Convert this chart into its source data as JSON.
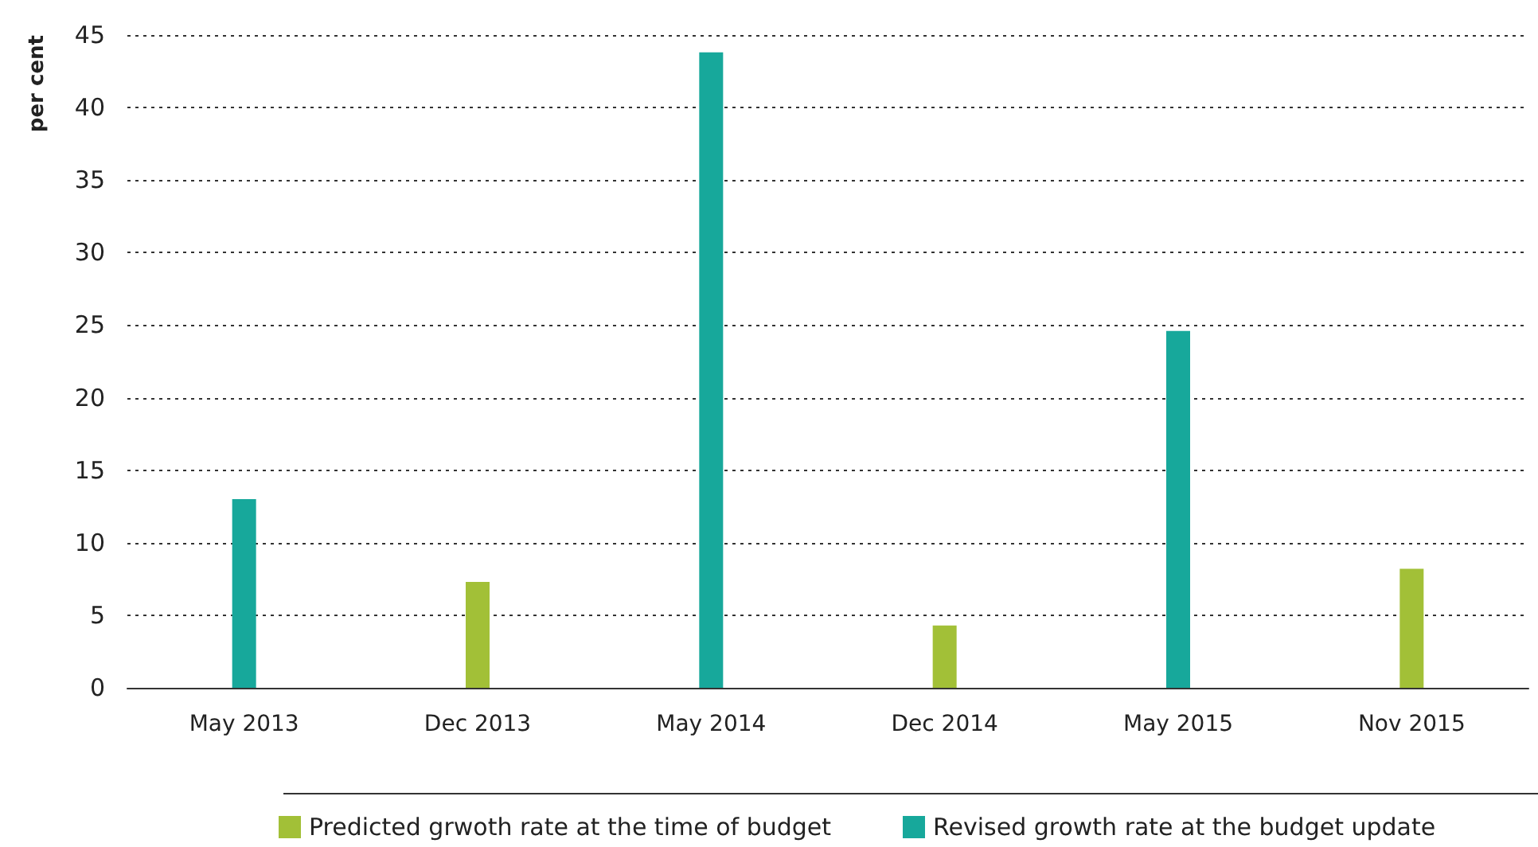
{
  "chart_data": {
    "type": "bar",
    "ylabel": "per cent",
    "categories": [
      "May 2013",
      "Dec 2013",
      "May 2014",
      "Dec 2014",
      "May 2015",
      "Nov 2015"
    ],
    "series": [
      {
        "name": "Predicted grwoth rate at the time of budget",
        "color": "#a2c037",
        "values": [
          null,
          7.3,
          null,
          4.3,
          null,
          8.2
        ]
      },
      {
        "name": "Revised growth rate at the budget update",
        "color": "#17a89b",
        "values": [
          13,
          null,
          43.8,
          null,
          24.6,
          null
        ]
      }
    ],
    "ylim": [
      0,
      45
    ],
    "yticks": [
      0,
      5,
      10,
      15,
      20,
      25,
      30,
      35,
      40,
      45
    ],
    "grid": "y",
    "legend": "bottom"
  }
}
